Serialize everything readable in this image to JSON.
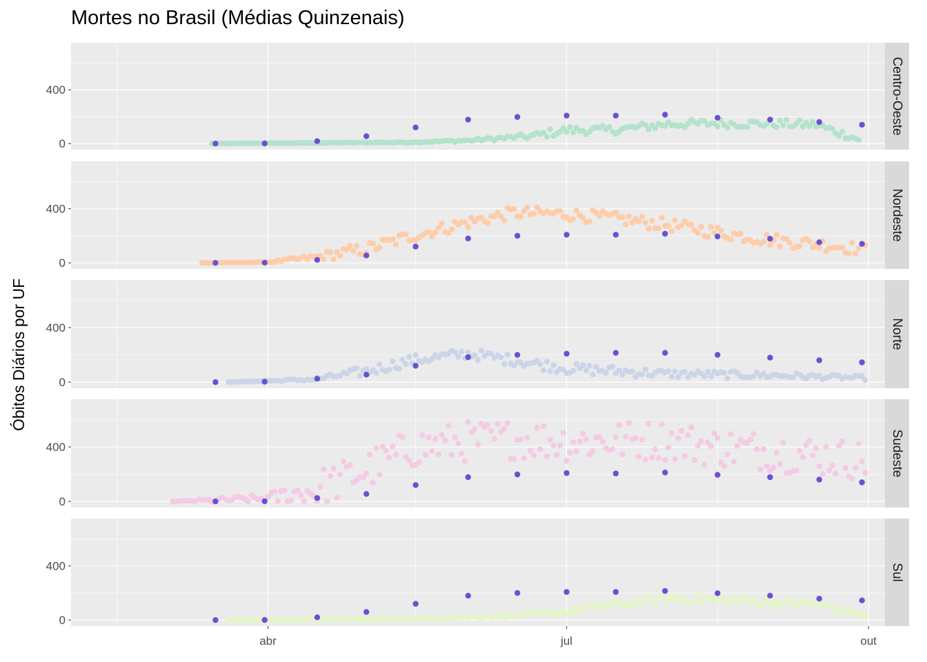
{
  "chart_data": {
    "type": "scatter",
    "title": "Mortes no Brasil (Médias Quinzenais)",
    "xlabel": "",
    "ylabel": "Óbitos Diários por UF",
    "x_range": [
      "2020-02-01",
      "2020-10-06"
    ],
    "x_ticks": [
      {
        "date": "2020-04-01",
        "label": "abr"
      },
      {
        "date": "2020-07-01",
        "label": "jul"
      },
      {
        "date": "2020-10-01",
        "label": "out"
      }
    ],
    "y_ticks": [
      0,
      400
    ],
    "ylim": [
      -45,
      750
    ],
    "grid": true,
    "facets": [
      {
        "region": "Centro-Oeste",
        "color": "#b4e2cc",
        "daily": {
          "start": "2020-03-15",
          "end": "2020-09-28",
          "points": [
            [
              "2020-03-15",
              0
            ],
            [
              "2020-04-15",
              5
            ],
            [
              "2020-05-15",
              10
            ],
            [
              "2020-06-01",
              22
            ],
            [
              "2020-06-20",
              55
            ],
            [
              "2020-07-01",
              100
            ],
            [
              "2020-07-15",
              100
            ],
            [
              "2020-08-01",
              145
            ],
            [
              "2020-08-15",
              150
            ],
            [
              "2020-09-01",
              148
            ],
            [
              "2020-09-15",
              140
            ],
            [
              "2020-09-28",
              30
            ]
          ],
          "noise": 32
        },
        "biweekly": [
          [
            "2020-03-16",
            0
          ],
          [
            "2020-03-31",
            1
          ],
          [
            "2020-04-16",
            18
          ],
          [
            "2020-05-01",
            55
          ],
          [
            "2020-05-16",
            120
          ],
          [
            "2020-06-01",
            178
          ],
          [
            "2020-06-16",
            198
          ],
          [
            "2020-07-01",
            208
          ],
          [
            "2020-07-16",
            208
          ],
          [
            "2020-07-31",
            215
          ],
          [
            "2020-08-16",
            192
          ],
          [
            "2020-09-01",
            178
          ],
          [
            "2020-09-16",
            160
          ],
          [
            "2020-09-29",
            140
          ]
        ]
      },
      {
        "region": "Nordeste",
        "color": "#fecca9",
        "daily": {
          "start": "2020-03-12",
          "end": "2020-09-30",
          "points": [
            [
              "2020-03-12",
              0
            ],
            [
              "2020-04-01",
              5
            ],
            [
              "2020-04-15",
              40
            ],
            [
              "2020-05-01",
              100
            ],
            [
              "2020-05-15",
              200
            ],
            [
              "2020-06-01",
              300
            ],
            [
              "2020-06-15",
              370
            ],
            [
              "2020-07-01",
              360
            ],
            [
              "2020-07-15",
              330
            ],
            [
              "2020-08-01",
              280
            ],
            [
              "2020-08-15",
              230
            ],
            [
              "2020-09-01",
              170
            ],
            [
              "2020-09-15",
              140
            ],
            [
              "2020-09-30",
              100
            ]
          ],
          "noise": 48
        },
        "biweekly": [
          [
            "2020-03-16",
            0
          ],
          [
            "2020-03-31",
            2
          ],
          [
            "2020-04-16",
            22
          ],
          [
            "2020-05-01",
            55
          ],
          [
            "2020-05-16",
            120
          ],
          [
            "2020-06-01",
            180
          ],
          [
            "2020-06-16",
            200
          ],
          [
            "2020-07-01",
            208
          ],
          [
            "2020-07-16",
            208
          ],
          [
            "2020-07-31",
            215
          ],
          [
            "2020-08-16",
            195
          ],
          [
            "2020-09-01",
            178
          ],
          [
            "2020-09-16",
            152
          ],
          [
            "2020-09-29",
            140
          ]
        ]
      },
      {
        "region": "Norte",
        "color": "#cbd5e8",
        "daily": {
          "start": "2020-03-20",
          "end": "2020-09-30",
          "points": [
            [
              "2020-03-20",
              0
            ],
            [
              "2020-04-15",
              20
            ],
            [
              "2020-05-01",
              80
            ],
            [
              "2020-05-15",
              160
            ],
            [
              "2020-06-01",
              210
            ],
            [
              "2020-06-15",
              160
            ],
            [
              "2020-07-01",
              100
            ],
            [
              "2020-08-01",
              60
            ],
            [
              "2020-09-01",
              50
            ],
            [
              "2020-09-30",
              30
            ]
          ],
          "noise": 40
        },
        "biweekly": [
          [
            "2020-03-16",
            0
          ],
          [
            "2020-03-31",
            3
          ],
          [
            "2020-04-16",
            25
          ],
          [
            "2020-05-01",
            55
          ],
          [
            "2020-05-16",
            120
          ],
          [
            "2020-06-01",
            183
          ],
          [
            "2020-06-16",
            200
          ],
          [
            "2020-07-01",
            208
          ],
          [
            "2020-07-16",
            215
          ],
          [
            "2020-07-31",
            215
          ],
          [
            "2020-08-16",
            200
          ],
          [
            "2020-09-01",
            180
          ],
          [
            "2020-09-16",
            160
          ],
          [
            "2020-09-29",
            145
          ]
        ]
      },
      {
        "region": "Sudeste",
        "color": "#f4cae4",
        "daily": {
          "start": "2020-03-03",
          "end": "2020-09-30",
          "points": [
            [
              "2020-03-03",
              0
            ],
            [
              "2020-04-01",
              20
            ],
            [
              "2020-04-15",
              80
            ],
            [
              "2020-05-01",
              230
            ],
            [
              "2020-05-15",
              390
            ],
            [
              "2020-06-01",
              440
            ],
            [
              "2020-06-15",
              460
            ],
            [
              "2020-07-01",
              440
            ],
            [
              "2020-08-01",
              450
            ],
            [
              "2020-08-15",
              400
            ],
            [
              "2020-09-01",
              370
            ],
            [
              "2020-09-30",
              300
            ]
          ],
          "noise": 150
        },
        "biweekly": [
          [
            "2020-03-16",
            0
          ],
          [
            "2020-03-31",
            1
          ],
          [
            "2020-04-16",
            25
          ],
          [
            "2020-05-01",
            55
          ],
          [
            "2020-05-16",
            120
          ],
          [
            "2020-06-01",
            178
          ],
          [
            "2020-06-16",
            198
          ],
          [
            "2020-07-01",
            208
          ],
          [
            "2020-07-16",
            205
          ],
          [
            "2020-07-31",
            212
          ],
          [
            "2020-08-16",
            195
          ],
          [
            "2020-09-01",
            178
          ],
          [
            "2020-09-16",
            160
          ],
          [
            "2020-09-29",
            140
          ]
        ]
      },
      {
        "region": "Sul",
        "color": "#e6f5c9",
        "daily": {
          "start": "2020-03-20",
          "end": "2020-09-30",
          "points": [
            [
              "2020-03-20",
              0
            ],
            [
              "2020-05-15",
              10
            ],
            [
              "2020-06-15",
              30
            ],
            [
              "2020-07-01",
              60
            ],
            [
              "2020-07-15",
              110
            ],
            [
              "2020-08-01",
              160
            ],
            [
              "2020-08-15",
              150
            ],
            [
              "2020-09-01",
              130
            ],
            [
              "2020-09-15",
              120
            ],
            [
              "2020-09-30",
              30
            ]
          ],
          "noise": 32
        },
        "biweekly": [
          [
            "2020-03-16",
            0
          ],
          [
            "2020-03-31",
            1
          ],
          [
            "2020-04-16",
            20
          ],
          [
            "2020-05-01",
            60
          ],
          [
            "2020-05-16",
            120
          ],
          [
            "2020-06-01",
            180
          ],
          [
            "2020-06-16",
            200
          ],
          [
            "2020-07-01",
            208
          ],
          [
            "2020-07-16",
            208
          ],
          [
            "2020-07-31",
            215
          ],
          [
            "2020-08-16",
            198
          ],
          [
            "2020-09-01",
            180
          ],
          [
            "2020-09-16",
            158
          ],
          [
            "2020-09-29",
            145
          ]
        ]
      }
    ],
    "biweekly_color": "#6a51d1"
  }
}
